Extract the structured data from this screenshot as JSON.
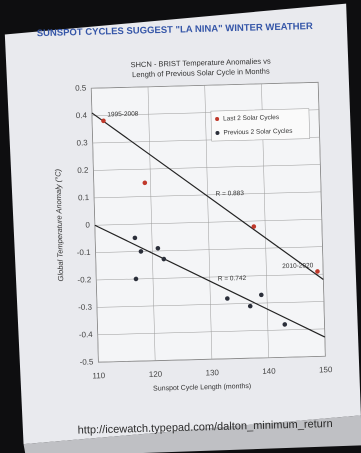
{
  "chart_data": {
    "type": "scatter",
    "slide_title": "SUNSPOT CYCLES SUGGEST \"LA NINA\" WINTER WEATHER",
    "title": "SHCN - BRIST Temperature Anomalies vs",
    "subtitle": "Length of Previous Solar Cycle in Months",
    "x_label": "Sunspot Cycle Length (months)",
    "y_label": "Global Temperature Anomaly (°C)",
    "xlim": [
      110,
      150
    ],
    "xticks": [
      110,
      120,
      130,
      140,
      150
    ],
    "ylim": [
      -0.5,
      0.5
    ],
    "yticks": [
      0.5,
      0.4,
      0.3,
      0.2,
      0.1,
      0,
      -0.1,
      -0.2,
      -0.3,
      -0.4,
      -0.5
    ],
    "grid": true,
    "series": [
      {
        "name": "Last 2 Solar Cycles",
        "color": "#c0392b",
        "x": [
          112,
          119,
          138,
          149
        ],
        "values": [
          0.38,
          0.15,
          -0.02,
          -0.19
        ],
        "point_labels": [
          "1995-2008",
          null,
          null,
          "2010-2020"
        ]
      },
      {
        "name": "Previous 2 Solar Cycles",
        "color": "#2b2f3a",
        "x": [
          117,
          118,
          117,
          121,
          122,
          133,
          137,
          139,
          143
        ],
        "values": [
          -0.05,
          -0.1,
          -0.2,
          -0.09,
          -0.13,
          -0.28,
          -0.31,
          -0.27,
          -0.38
        ]
      }
    ],
    "trendlines": [
      {
        "label": "R = 0.883",
        "color": "#222222",
        "x": [
          110,
          150
        ],
        "values": [
          0.41,
          -0.22
        ]
      },
      {
        "label": "R = 0.742",
        "color": "#222222",
        "x": [
          110,
          150
        ],
        "values": [
          0.0,
          -0.43
        ]
      }
    ]
  },
  "footer": "http://icewatch.typepad.com/dalton_minimum_return"
}
